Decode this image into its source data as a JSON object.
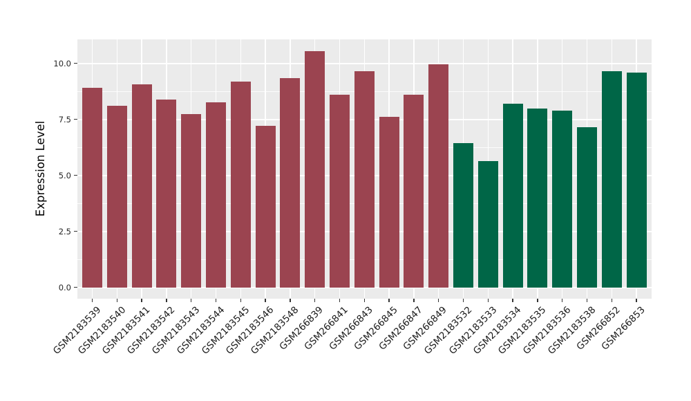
{
  "figure": {
    "background_color": "#FFFFFF",
    "panel_background_color": "#EBEBEB",
    "gridline_color": "#FFFFFF",
    "tick_color": "#333333",
    "axis_text_color": "#262626"
  },
  "chart_data": {
    "type": "bar",
    "title": "",
    "xlabel": "",
    "ylabel": "Expression Level",
    "ylim": [
      0,
      11.1
    ],
    "yticks": [
      0,
      2.5,
      5,
      7.5,
      10
    ],
    "ytick_labels": [
      "0.0",
      "2.5",
      "5.0",
      "7.5",
      "10.0"
    ],
    "yminor": [
      1.25,
      3.75,
      6.25,
      8.75
    ],
    "grid": "major+minor, white on gray panel",
    "legend_position": "none",
    "x_label_rotation_deg": 45,
    "group_colors": {
      "group1": "#9B4450",
      "group2": "#006647"
    },
    "categories": [
      "GSM2183539",
      "GSM2183540",
      "GSM2183541",
      "GSM2183542",
      "GSM2183543",
      "GSM2183544",
      "GSM2183545",
      "GSM2183546",
      "GSM2183548",
      "GSM266839",
      "GSM266841",
      "GSM266843",
      "GSM266845",
      "GSM266847",
      "GSM266849",
      "GSM2183532",
      "GSM2183533",
      "GSM2183534",
      "GSM2183535",
      "GSM2183536",
      "GSM2183538",
      "GSM266852",
      "GSM266853"
    ],
    "values": [
      8.9,
      8.1,
      9.05,
      8.4,
      7.75,
      8.25,
      9.2,
      7.2,
      9.35,
      10.55,
      8.6,
      9.65,
      7.6,
      8.6,
      9.95,
      6.45,
      5.65,
      8.2,
      8.0,
      7.9,
      7.15,
      9.65,
      9.6
    ],
    "bar_colors": [
      "#9B4450",
      "#9B4450",
      "#9B4450",
      "#9B4450",
      "#9B4450",
      "#9B4450",
      "#9B4450",
      "#9B4450",
      "#9B4450",
      "#9B4450",
      "#9B4450",
      "#9B4450",
      "#9B4450",
      "#9B4450",
      "#9B4450",
      "#006647",
      "#006647",
      "#006647",
      "#006647",
      "#006647",
      "#006647",
      "#006647",
      "#006647"
    ]
  }
}
